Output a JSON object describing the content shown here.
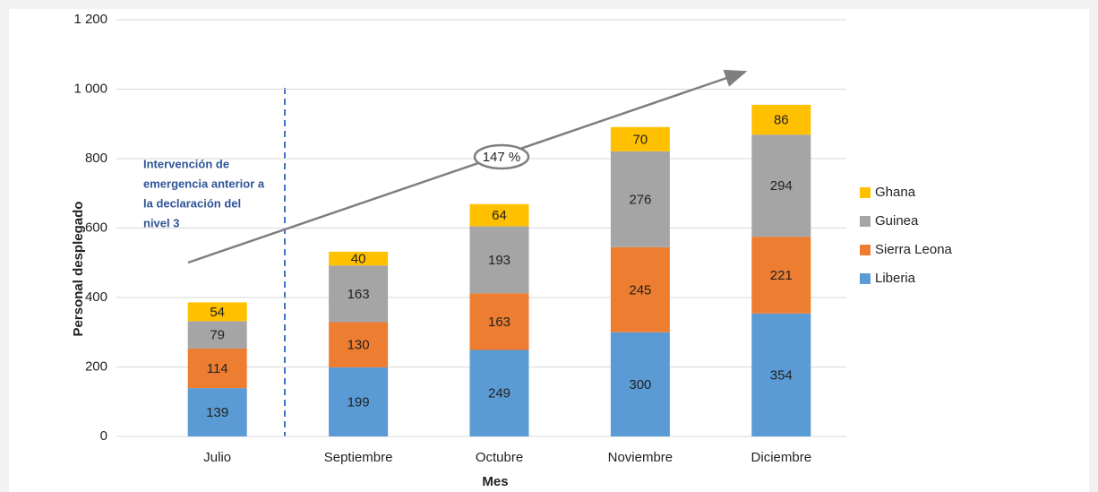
{
  "chart_data": {
    "type": "stacked_bar",
    "categories": [
      "Julio",
      "Septiembre",
      "Octubre",
      "Noviembre",
      "Diciembre"
    ],
    "series": [
      {
        "name": "Liberia",
        "color": "#5b9bd5",
        "values": [
          139,
          199,
          249,
          300,
          354
        ]
      },
      {
        "name": "Sierra Leona",
        "color": "#ed7d31",
        "values": [
          114,
          130,
          163,
          245,
          221
        ]
      },
      {
        "name": "Guinea",
        "color": "#a5a5a5",
        "values": [
          79,
          163,
          193,
          276,
          294
        ]
      },
      {
        "name": "Ghana",
        "color": "#ffc000",
        "values": [
          54,
          40,
          64,
          70,
          86
        ]
      }
    ],
    "ylim": [
      0,
      1200
    ],
    "yticks": [
      0,
      200,
      400,
      600,
      800,
      {
        "value": 1000,
        "label": "1 000"
      },
      {
        "value": 1200,
        "label": "1 200"
      }
    ],
    "grid": true,
    "ylabel": "Personal desplegado",
    "xlabel": "Mes",
    "legend": "right",
    "annotations": {
      "note_lines": [
        "Intervención de",
        "emergencia anterior a",
        "la declaración del",
        "nivel 3"
      ],
      "growth": "147 %"
    }
  }
}
